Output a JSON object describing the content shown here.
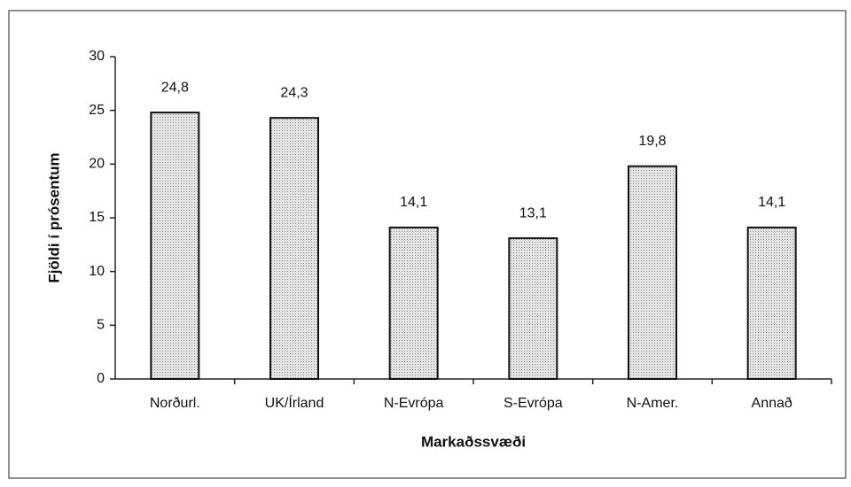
{
  "chart_data": {
    "type": "bar",
    "categories": [
      "Norðurl.",
      "UK/Írland",
      "N-Evrópa",
      "S-Evrópa",
      "N-Amer.",
      "Annað"
    ],
    "values": [
      24.8,
      24.3,
      14.1,
      13.1,
      19.8,
      14.1
    ],
    "value_labels": [
      "24,8",
      "24,3",
      "14,1",
      "13,1",
      "19,8",
      "14,1"
    ],
    "color": "#c9c9c9",
    "x_label": "Markaðssvæði",
    "y_label": "Fjöldi í prósentum",
    "ylim": [
      0,
      30
    ],
    "yticks": [
      0,
      5,
      10,
      15,
      20,
      25,
      30
    ],
    "grid": false
  }
}
